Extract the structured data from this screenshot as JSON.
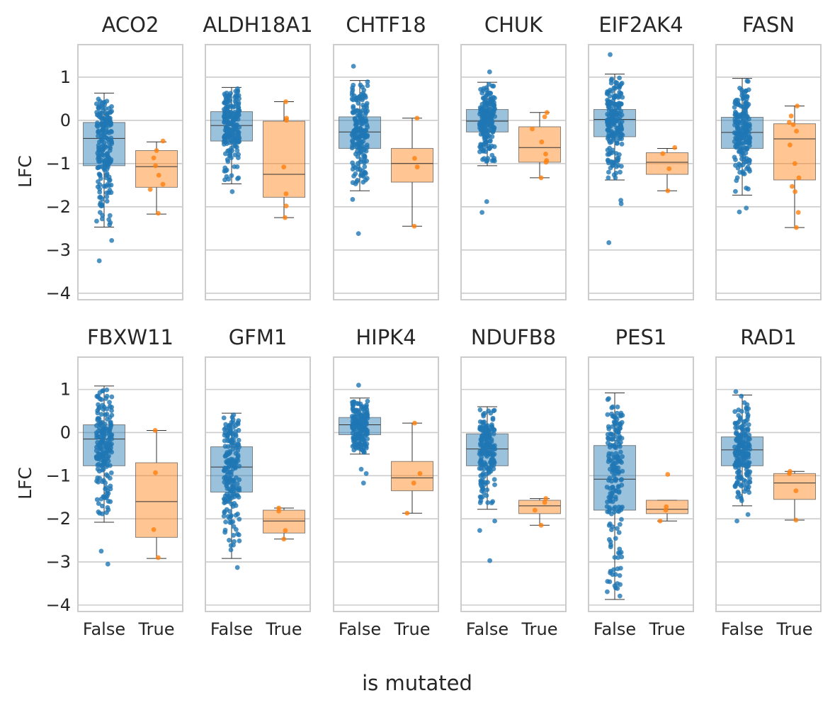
{
  "figure": {
    "supxlabel": "is mutated",
    "ylabel": "LFC"
  },
  "chart_data": {
    "type": "box",
    "grid": true,
    "ylim": [
      -4.15,
      1.75
    ],
    "yticks": [
      -4,
      -3,
      -2,
      -1,
      0,
      1
    ],
    "ytick_labels": [
      "−4",
      "−3",
      "−2",
      "−1",
      "0",
      "1"
    ],
    "categories": [
      "False",
      "True"
    ],
    "colors": {
      "False": "#1f77b4",
      "True": "#ff7f0e",
      "grid": "#cccccc",
      "spine": "#cccccc",
      "whisker": "#333333"
    },
    "panels": [
      {
        "title": "ACO2",
        "false": {
          "q1": -1.05,
          "median": -0.42,
          "q3": -0.05,
          "whislo": -2.47,
          "whishi": 0.63,
          "outliers": [
            -2.78,
            -3.25
          ]
        },
        "true": {
          "q1": -1.55,
          "median": -1.07,
          "q3": -0.7,
          "whislo": -2.17,
          "whishi": -0.5,
          "points": [
            -0.48,
            -0.7,
            -0.87,
            -1.05,
            -1.27,
            -1.48,
            -1.6,
            -2.15
          ]
        }
      },
      {
        "title": "ALDH18A1",
        "false": {
          "q1": -0.48,
          "median": -0.12,
          "q3": 0.2,
          "whislo": -1.47,
          "whishi": 0.76,
          "outliers": [
            -1.65
          ]
        },
        "true": {
          "q1": -1.78,
          "median": -1.25,
          "q3": -0.02,
          "whislo": -2.25,
          "whishi": 0.43,
          "points": [
            0.43,
            0.05,
            0.0,
            -1.08,
            -1.7,
            -1.98,
            -2.25
          ]
        }
      },
      {
        "title": "CHTF18",
        "false": {
          "q1": -0.65,
          "median": -0.27,
          "q3": 0.08,
          "whislo": -1.63,
          "whishi": 0.92,
          "outliers": [
            1.25,
            -1.83,
            -2.62
          ]
        },
        "true": {
          "q1": -1.43,
          "median": -1.0,
          "q3": -0.65,
          "whislo": -2.45,
          "whishi": 0.05,
          "points": [
            0.05,
            -0.88,
            -1.08,
            -2.45
          ]
        }
      },
      {
        "title": "CHUK",
        "false": {
          "q1": -0.27,
          "median": -0.02,
          "q3": 0.25,
          "whislo": -1.05,
          "whishi": 0.88,
          "outliers": [
            1.12,
            -1.88,
            -2.13
          ]
        },
        "true": {
          "q1": -0.97,
          "median": -0.63,
          "q3": -0.15,
          "whislo": -1.33,
          "whishi": 0.18,
          "points": [
            0.18,
            0.08,
            -0.2,
            -0.5,
            -0.78,
            -0.93,
            -0.97,
            -1.33
          ]
        }
      },
      {
        "title": "EIF2AK4",
        "false": {
          "q1": -0.38,
          "median": 0.02,
          "q3": 0.25,
          "whislo": -1.38,
          "whishi": 1.07,
          "outliers": [
            1.52,
            -1.85,
            -1.93,
            -2.83
          ]
        },
        "true": {
          "q1": -1.25,
          "median": -0.97,
          "q3": -0.75,
          "whislo": -1.63,
          "whishi": -0.65,
          "points": [
            -0.63,
            -0.77,
            -1.12,
            -1.63
          ]
        }
      },
      {
        "title": "FASN",
        "false": {
          "q1": -0.65,
          "median": -0.28,
          "q3": 0.07,
          "whislo": -1.73,
          "whishi": 0.97,
          "outliers": [
            -2.03,
            -2.12
          ]
        },
        "true": {
          "q1": -1.38,
          "median": -0.43,
          "q3": -0.08,
          "whislo": -2.48,
          "whishi": 0.33,
          "points": [
            0.33,
            0.1,
            -0.05,
            -0.1,
            -0.25,
            -0.57,
            -1.0,
            -1.33,
            -1.53,
            -1.65,
            -2.13,
            -2.48
          ]
        }
      },
      {
        "title": "FBXW11",
        "false": {
          "q1": -0.77,
          "median": -0.15,
          "q3": 0.18,
          "whislo": -2.08,
          "whishi": 1.08,
          "outliers": [
            -2.75,
            -3.05
          ]
        },
        "true": {
          "q1": -2.43,
          "median": -1.6,
          "q3": -0.7,
          "whislo": -2.92,
          "whishi": 0.05,
          "points": [
            0.05,
            -0.93,
            -2.25,
            -2.9
          ]
        }
      },
      {
        "title": "GFM1",
        "false": {
          "q1": -1.38,
          "median": -0.8,
          "q3": -0.33,
          "whislo": -2.92,
          "whishi": 0.45,
          "outliers": [
            -3.13
          ]
        },
        "true": {
          "q1": -2.33,
          "median": -2.05,
          "q3": -1.8,
          "whislo": -2.47,
          "whishi": -1.75,
          "points": [
            -1.75,
            -1.82,
            -2.27,
            -2.47
          ]
        }
      },
      {
        "title": "HIPK4",
        "false": {
          "q1": -0.05,
          "median": 0.18,
          "q3": 0.35,
          "whislo": -0.5,
          "whishi": 0.8,
          "outliers": [
            1.1,
            -0.85,
            -0.95,
            -1.17
          ]
        },
        "true": {
          "q1": -1.35,
          "median": -1.05,
          "q3": -0.67,
          "whislo": -1.87,
          "whishi": 0.22,
          "points": [
            0.22,
            -0.95,
            -1.17,
            -1.87
          ]
        }
      },
      {
        "title": "NDUFB8",
        "false": {
          "q1": -0.77,
          "median": -0.38,
          "q3": -0.03,
          "whislo": -1.78,
          "whishi": 0.6,
          "outliers": [
            -2.05,
            -2.27,
            -2.97
          ]
        },
        "true": {
          "q1": -1.88,
          "median": -1.7,
          "q3": -1.57,
          "whislo": -2.15,
          "whishi": -1.53,
          "points": [
            -1.53,
            -1.62,
            -1.8,
            -2.15
          ]
        }
      },
      {
        "title": "PES1",
        "false": {
          "q1": -1.8,
          "median": -1.08,
          "q3": -0.3,
          "whislo": -3.87,
          "whishi": 0.92,
          "outliers": []
        },
        "true": {
          "q1": -1.88,
          "median": -1.78,
          "q3": -1.57,
          "whislo": -2.05,
          "whishi": -1.57,
          "points": [
            -0.97,
            -1.72,
            -1.8,
            -2.05
          ]
        }
      },
      {
        "title": "RAD1",
        "false": {
          "q1": -0.77,
          "median": -0.4,
          "q3": -0.1,
          "whislo": -1.7,
          "whishi": 0.87,
          "outliers": [
            0.95,
            -1.9,
            -2.05
          ]
        },
        "true": {
          "q1": -1.55,
          "median": -1.17,
          "q3": -0.95,
          "whislo": -2.03,
          "whishi": -0.9,
          "points": [
            -0.9,
            -0.95,
            -1.35,
            -2.03
          ]
        }
      }
    ]
  }
}
